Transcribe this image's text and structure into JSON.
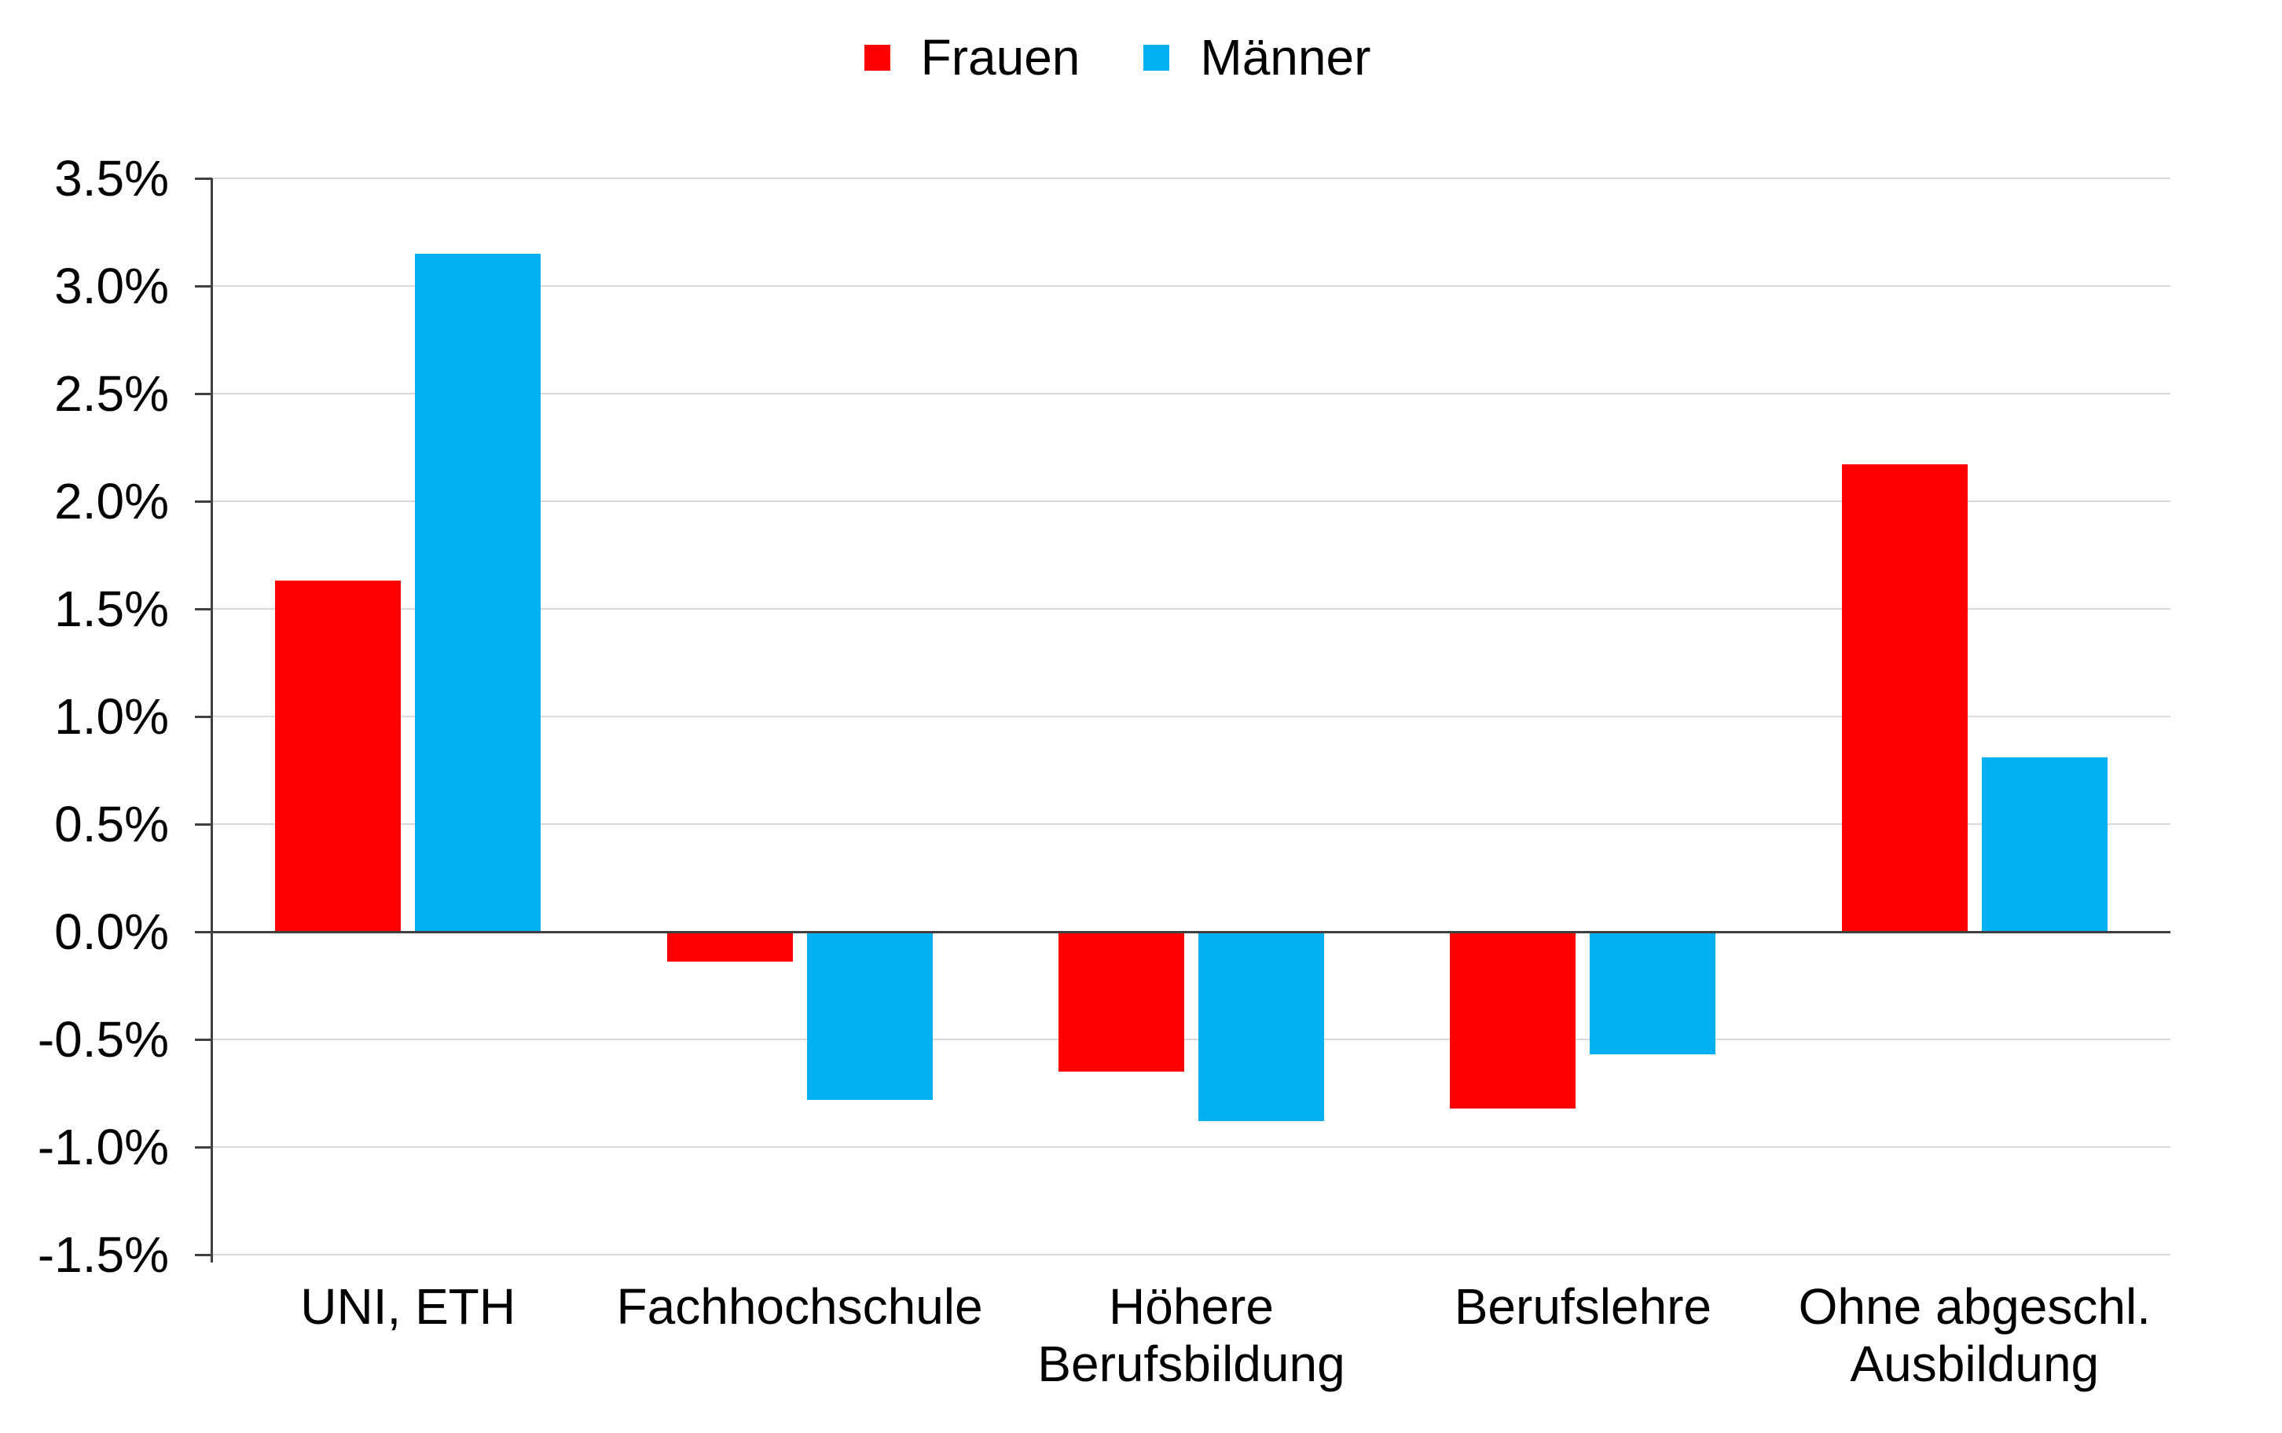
{
  "chart_data": {
    "type": "bar",
    "title": "",
    "categories": [
      "UNI, ETH",
      "Fachhochschule",
      "Höhere Berufsbildung",
      "Berufslehre",
      "Ohne abgeschl. Ausbildung"
    ],
    "category_label_lines": [
      [
        "UNI, ETH"
      ],
      [
        "Fachhochschule"
      ],
      [
        "Höhere",
        "Berufsbildung"
      ],
      [
        "Berufslehre"
      ],
      [
        "Ohne abgeschl.",
        "Ausbildung"
      ]
    ],
    "series": [
      {
        "name": "Frauen",
        "color": "#FF0000",
        "values": [
          1.63,
          -0.14,
          -0.65,
          -0.82,
          2.17
        ]
      },
      {
        "name": "Männer",
        "color": "#00B0F0",
        "values": [
          3.15,
          -0.78,
          -0.88,
          -0.57,
          0.81
        ]
      }
    ],
    "xlabel": "",
    "ylabel": "",
    "ylim": [
      -1.5,
      3.5
    ],
    "ytick_step": 0.5,
    "ytick_values": [
      3.5,
      3.0,
      2.5,
      2.0,
      1.5,
      1.0,
      0.5,
      0.0,
      -0.5,
      -1.0,
      -1.5
    ],
    "ytick_labels": [
      "3.5%",
      "3.0%",
      "2.5%",
      "2.0%",
      "1.5%",
      "1.0%",
      "0.5%",
      "0.0%",
      "-0.5%",
      "-1.0%",
      "-1.5%"
    ],
    "value_format": "percent",
    "grid": "horizontal",
    "legend_position": "top-center"
  },
  "legend": {
    "items": [
      {
        "label": "Frauen",
        "color": "#FF0000"
      },
      {
        "label": "Männer",
        "color": "#00B0F0"
      }
    ]
  },
  "colors": {
    "background": "#FFFFFF",
    "gridline": "#D9D9D9",
    "axis_line": "#404040",
    "text": "#000000",
    "series_frauen": "#FF0000",
    "series_maenner": "#00B0F0"
  }
}
